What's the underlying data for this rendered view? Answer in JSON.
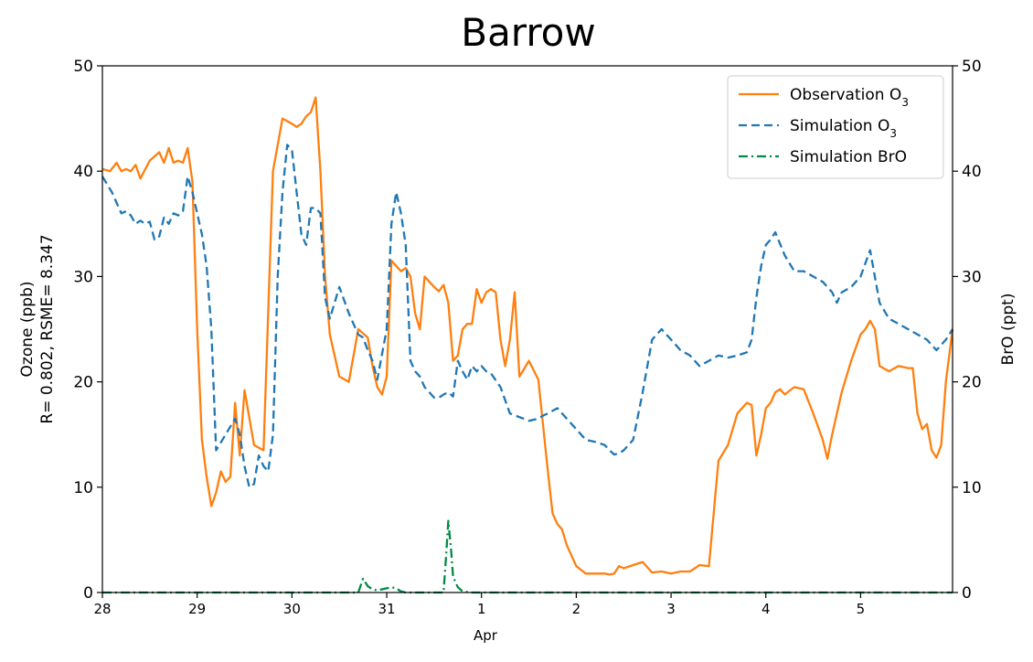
{
  "chart_data": {
    "type": "line",
    "title": "Barrow",
    "ylabel": "Ozone (ppb)",
    "ylabel2": "R= 0.802, RSME= 8.347",
    "ylabel_right": "BrO (ppt)",
    "xlabel": "Apr",
    "xlim_days": [
      0,
      8.97
    ],
    "ylim": [
      0,
      50
    ],
    "ylim_right": [
      0,
      50
    ],
    "x_ticks": [
      {
        "label": "28",
        "day": 0
      },
      {
        "label": "29",
        "day": 1
      },
      {
        "label": "30",
        "day": 2
      },
      {
        "label": "31",
        "day": 3
      },
      {
        "label": "1",
        "day": 4
      },
      {
        "label": "2",
        "day": 5
      },
      {
        "label": "3",
        "day": 6
      },
      {
        "label": "4",
        "day": 7
      },
      {
        "label": "5",
        "day": 8
      }
    ],
    "y_ticks": [
      "0",
      "10",
      "20",
      "30",
      "40",
      "50"
    ],
    "y_ticks_right": [
      "0",
      "10",
      "20",
      "30",
      "40",
      "50"
    ],
    "legend_position": "top-right",
    "grid": false,
    "series": [
      {
        "name": "Observation O3",
        "name_base": "Observation O",
        "name_sub": "3",
        "color": "#ff7f0e",
        "style": "solid",
        "axis": "left",
        "x": [
          0,
          0.08,
          0.15,
          0.2,
          0.25,
          0.3,
          0.35,
          0.4,
          0.5,
          0.6,
          0.65,
          0.7,
          0.75,
          0.8,
          0.85,
          0.9,
          0.95,
          1.0,
          1.05,
          1.1,
          1.15,
          1.2,
          1.25,
          1.3,
          1.35,
          1.4,
          1.45,
          1.5,
          1.6,
          1.7,
          1.8,
          1.9,
          2.0,
          2.05,
          2.1,
          2.15,
          2.2,
          2.25,
          2.3,
          2.35,
          2.4,
          2.5,
          2.6,
          2.7,
          2.8,
          2.85,
          2.9,
          2.95,
          3.0,
          3.05,
          3.15,
          3.2,
          3.25,
          3.3,
          3.35,
          3.4,
          3.45,
          3.5,
          3.55,
          3.6,
          3.65,
          3.7,
          3.75,
          3.8,
          3.85,
          3.9,
          3.95,
          4.0,
          4.05,
          4.1,
          4.15,
          4.2,
          4.25,
          4.3,
          4.35,
          4.4,
          4.5,
          4.6,
          4.7,
          4.75,
          4.8,
          4.85,
          4.9,
          5.0,
          5.1,
          5.2,
          5.3,
          5.35,
          5.4,
          5.45,
          5.5,
          5.6,
          5.7,
          5.8,
          5.9,
          6.0,
          6.1,
          6.2,
          6.3,
          6.4,
          6.5,
          6.6,
          6.7,
          6.8,
          6.85,
          6.9,
          6.95,
          7.0,
          7.05,
          7.1,
          7.15,
          7.2,
          7.3,
          7.4,
          7.5,
          7.6,
          7.65,
          7.7,
          7.8,
          7.9,
          8.0,
          8.05,
          8.1,
          8.15,
          8.2,
          8.3,
          8.4,
          8.5,
          8.55,
          8.6,
          8.65,
          8.7,
          8.75,
          8.8,
          8.85,
          8.9,
          8.97
        ],
        "values": [
          40.2,
          40.0,
          40.8,
          40.0,
          40.2,
          40.0,
          40.6,
          39.3,
          41.0,
          41.8,
          40.8,
          42.2,
          40.8,
          41.0,
          40.8,
          42.2,
          39.0,
          25.0,
          14.5,
          11.0,
          8.2,
          9.5,
          11.5,
          10.5,
          11.0,
          18.0,
          13.0,
          19.2,
          14.0,
          13.5,
          40.0,
          45.0,
          44.5,
          44.2,
          44.5,
          45.2,
          45.6,
          47.0,
          40.0,
          30.0,
          24.5,
          20.5,
          20.0,
          25.0,
          24.2,
          21.5,
          19.5,
          18.8,
          20.5,
          31.5,
          30.5,
          30.8,
          30.0,
          26.5,
          25.0,
          30.0,
          29.5,
          29.0,
          28.6,
          29.2,
          27.5,
          22.0,
          22.5,
          25.0,
          25.5,
          25.5,
          28.8,
          27.5,
          28.5,
          28.8,
          28.5,
          24.0,
          21.5,
          24.0,
          28.5,
          20.5,
          22.0,
          20.2,
          11.5,
          7.5,
          6.5,
          6.0,
          4.5,
          2.5,
          1.8,
          1.8,
          1.8,
          1.7,
          1.8,
          2.5,
          2.3,
          2.6,
          2.9,
          1.9,
          2.0,
          1.8,
          2.0,
          2.0,
          2.6,
          2.5,
          12.5,
          14.0,
          17.0,
          18.0,
          17.8,
          13.0,
          15.0,
          17.5,
          18.0,
          19.0,
          19.3,
          18.8,
          19.5,
          19.3,
          17.0,
          14.5,
          12.7,
          15.0,
          19.0,
          22.0,
          24.5,
          25.0,
          25.8,
          25.0,
          21.5,
          21.0,
          21.5,
          21.3,
          21.3,
          17.0,
          15.5,
          16.0,
          13.5,
          12.8,
          14.0,
          20.0,
          25.0
        ]
      },
      {
        "name": "Simulation O3",
        "name_base": "Simulation O",
        "name_sub": "3",
        "color": "#1f77b4",
        "style": "dashed",
        "axis": "left",
        "x": [
          0,
          0.1,
          0.2,
          0.25,
          0.3,
          0.35,
          0.4,
          0.45,
          0.5,
          0.55,
          0.6,
          0.65,
          0.7,
          0.75,
          0.8,
          0.85,
          0.9,
          0.95,
          1.0,
          1.05,
          1.1,
          1.15,
          1.2,
          1.3,
          1.4,
          1.45,
          1.5,
          1.55,
          1.6,
          1.65,
          1.7,
          1.75,
          1.8,
          1.85,
          1.9,
          1.95,
          2.0,
          2.05,
          2.1,
          2.15,
          2.2,
          2.25,
          2.3,
          2.35,
          2.4,
          2.5,
          2.6,
          2.65,
          2.7,
          2.75,
          2.8,
          2.85,
          2.9,
          3.0,
          3.05,
          3.1,
          3.15,
          3.2,
          3.25,
          3.3,
          3.35,
          3.4,
          3.45,
          3.5,
          3.55,
          3.6,
          3.65,
          3.7,
          3.75,
          3.8,
          3.85,
          3.9,
          3.95,
          4.0,
          4.05,
          4.1,
          4.2,
          4.3,
          4.5,
          4.6,
          4.65,
          4.7,
          4.8,
          4.9,
          5.0,
          5.1,
          5.2,
          5.3,
          5.35,
          5.4,
          5.45,
          5.5,
          5.6,
          5.7,
          5.8,
          5.9,
          6.0,
          6.1,
          6.2,
          6.25,
          6.3,
          6.4,
          6.5,
          6.6,
          6.7,
          6.8,
          6.85,
          6.9,
          6.95,
          7.0,
          7.05,
          7.1,
          7.2,
          7.3,
          7.4,
          7.5,
          7.6,
          7.7,
          7.75,
          7.8,
          7.9,
          8.0,
          8.1,
          8.15,
          8.2,
          8.3,
          8.4,
          8.5,
          8.6,
          8.7,
          8.75,
          8.8,
          8.9,
          8.97
        ],
        "values": [
          39.5,
          38.0,
          36.0,
          36.2,
          35.8,
          35.0,
          35.3,
          35.0,
          35.2,
          33.5,
          33.8,
          35.6,
          35.0,
          36.0,
          35.8,
          36.2,
          39.5,
          38.0,
          36.0,
          34.0,
          31.0,
          25.0,
          13.5,
          15.0,
          16.5,
          15.0,
          12.0,
          10.0,
          10.3,
          13.0,
          12.0,
          11.5,
          15.0,
          30.0,
          38.0,
          42.5,
          42.0,
          38.0,
          34.0,
          33.0,
          36.5,
          36.5,
          36.0,
          28.0,
          26.0,
          29.0,
          26.5,
          25.5,
          24.5,
          24.2,
          23.0,
          22.0,
          20.2,
          25.0,
          35.0,
          38.0,
          36.0,
          33.0,
          22.0,
          21.0,
          20.5,
          19.5,
          19.0,
          18.5,
          18.5,
          18.8,
          19.0,
          18.6,
          22.0,
          21.0,
          20.2,
          21.5,
          21.0,
          21.5,
          21.0,
          20.8,
          19.5,
          17.0,
          16.3,
          16.5,
          16.8,
          17.0,
          17.5,
          16.5,
          15.5,
          14.5,
          14.3,
          14.0,
          13.5,
          13.1,
          13.2,
          13.5,
          14.5,
          19.0,
          24.0,
          25.0,
          24.0,
          23.0,
          22.5,
          22.0,
          21.5,
          22.0,
          22.5,
          22.3,
          22.5,
          22.8,
          24.0,
          28.0,
          31.0,
          33.0,
          33.5,
          34.2,
          32.0,
          30.5,
          30.5,
          30.0,
          29.5,
          28.5,
          27.5,
          28.5,
          29.0,
          30.0,
          32.5,
          30.0,
          27.5,
          26.0,
          25.5,
          25.0,
          24.5,
          24.0,
          23.5,
          23.0,
          24.0,
          25.0
        ]
      },
      {
        "name": "Simulation BrO",
        "color": "#008b45",
        "style": "dashdot",
        "axis": "right",
        "x": [
          0,
          2.7,
          2.75,
          2.8,
          2.85,
          2.9,
          2.95,
          3.0,
          3.05,
          3.1,
          3.15,
          3.2,
          3.5,
          3.6,
          3.63,
          3.65,
          3.68,
          3.7,
          3.75,
          3.8,
          3.9,
          8.97
        ],
        "values": [
          0,
          0,
          1.3,
          0.6,
          0.3,
          0.2,
          0.3,
          0.4,
          0.5,
          0.4,
          0.1,
          0,
          0,
          0,
          4.0,
          6.8,
          4.0,
          1.5,
          0.5,
          0.1,
          0,
          0
        ]
      }
    ]
  }
}
